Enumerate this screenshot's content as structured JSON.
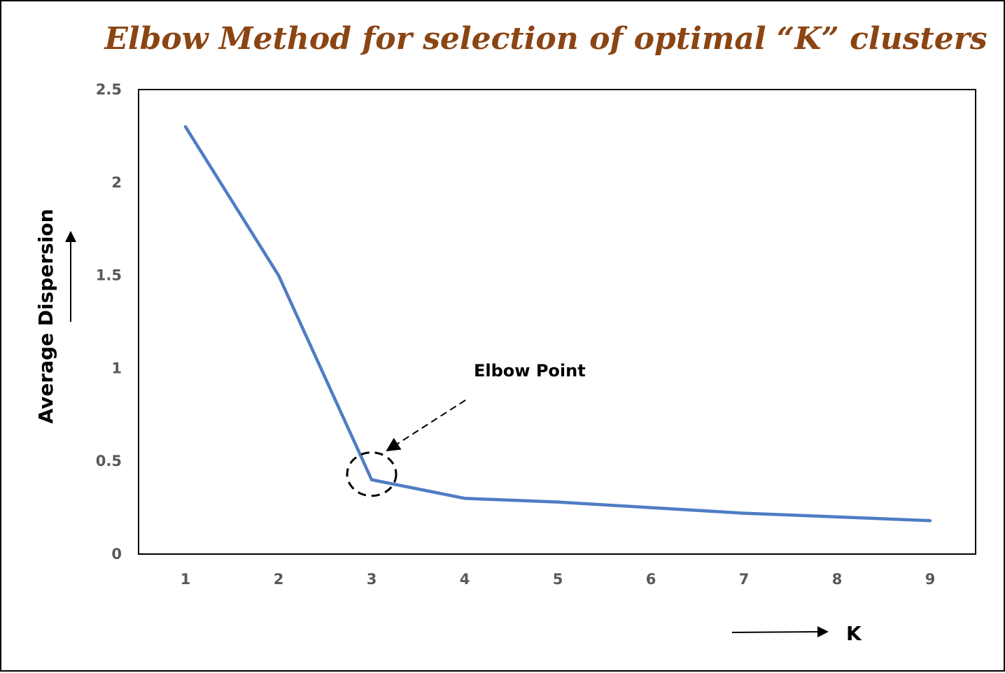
{
  "chart_data": {
    "type": "line",
    "title": "Elbow Method for selection of optimal “K” clusters",
    "title_color": "#8B4513",
    "xlabel": "K",
    "ylabel": "Average Dispersion",
    "x": [
      1,
      2,
      3,
      4,
      5,
      6,
      7,
      8,
      9
    ],
    "x_tick_labels": [
      "1",
      "2",
      "3",
      "4",
      "5",
      "6",
      "7",
      "8",
      "9"
    ],
    "y_tick_labels": [
      "0",
      "0.5",
      "1",
      "1.5",
      "2",
      "2.5"
    ],
    "y_ticks": [
      0,
      0.5,
      1,
      1.5,
      2,
      2.5
    ],
    "ylim": [
      0,
      2.5
    ],
    "grid": false,
    "series": [
      {
        "values": [
          2.3,
          1.5,
          0.4,
          0.3,
          0.28,
          0.25,
          0.22,
          0.2,
          0.18
        ],
        "color": "#4F7CC4"
      }
    ],
    "annotation": {
      "text": "Elbow Point",
      "target_x": 3,
      "target_y": 0.4
    }
  }
}
